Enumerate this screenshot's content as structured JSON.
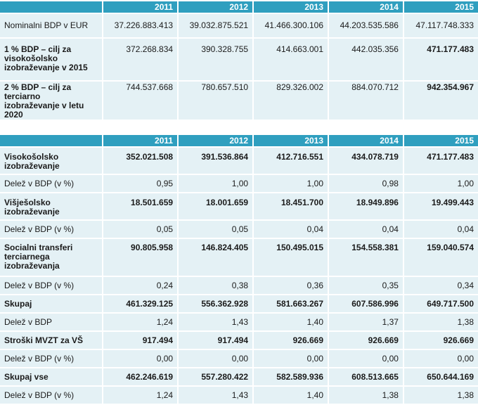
{
  "years": [
    "2011",
    "2012",
    "2013",
    "2014",
    "2015"
  ],
  "table1": {
    "rows": [
      {
        "label": "Nominalni BDP v EUR",
        "values": [
          "37.226.883.413",
          "39.032.875.521",
          "41.466.300.106",
          "44.203.535.586",
          "47.117.748.333"
        ]
      },
      {
        "label": "1 % BDP – cilj za visokošolsko izobraževanje v 2015",
        "values": [
          "372.268.834",
          "390.328.755",
          "414.663.001",
          "442.035.356",
          "471.177.483"
        ]
      },
      {
        "label": "2 % BDP – cilj za terciarno izobraževanje v letu 2020",
        "values": [
          "744.537.668",
          "780.657.510",
          "829.326.002",
          "884.070.712",
          "942.354.967"
        ]
      }
    ]
  },
  "table2": {
    "rows": [
      {
        "label": "Visokošolsko izobraževanje",
        "values": [
          "352.021.508",
          "391.536.864",
          "412.716.551",
          "434.078.719",
          "471.177.483"
        ]
      },
      {
        "label": "Delež v BDP (v %)",
        "values": [
          "0,95",
          "1,00",
          "1,00",
          "0,98",
          "1,00"
        ]
      },
      {
        "label": "Višješolsko izobraževanje",
        "values": [
          "18.501.659",
          "18.001.659",
          "18.451.700",
          "18.949.896",
          "19.499.443"
        ]
      },
      {
        "label": "Delež v BDP (v %)",
        "values": [
          "0,05",
          "0,05",
          "0,04",
          "0,04",
          "0,04"
        ]
      },
      {
        "label": "Socialni transferi terciarnega izobraževanja",
        "values": [
          "90.805.958",
          "146.824.405",
          "150.495.015",
          "154.558.381",
          "159.040.574"
        ]
      },
      {
        "label": "Delež v BDP (v %)",
        "values": [
          "0,24",
          "0,38",
          "0,36",
          "0,35",
          "0,34"
        ]
      },
      {
        "label": "Skupaj",
        "values": [
          "461.329.125",
          "556.362.928",
          "581.663.267",
          "607.586.996",
          "649.717.500"
        ]
      },
      {
        "label": "Delež v BDP",
        "values": [
          "1,24",
          "1,43",
          "1,40",
          "1,37",
          "1,38"
        ]
      },
      {
        "label": "Stroški MVZT za VŠ",
        "values": [
          "917.494",
          "917.494",
          "926.669",
          "926.669",
          "926.669"
        ]
      },
      {
        "label": "Delež v BDP (v %)",
        "values": [
          "0,00",
          "0,00",
          "0,00",
          "0,00",
          "0,00"
        ]
      },
      {
        "label": "Skupaj vse",
        "values": [
          "462.246.619",
          "557.280.422",
          "582.589.936",
          "608.513.665",
          "650.644.169"
        ]
      },
      {
        "label": "Delež v BDP (v %)",
        "values": [
          "1,24",
          "1,43",
          "1,40",
          "1,38",
          "1,38"
        ]
      }
    ]
  }
}
